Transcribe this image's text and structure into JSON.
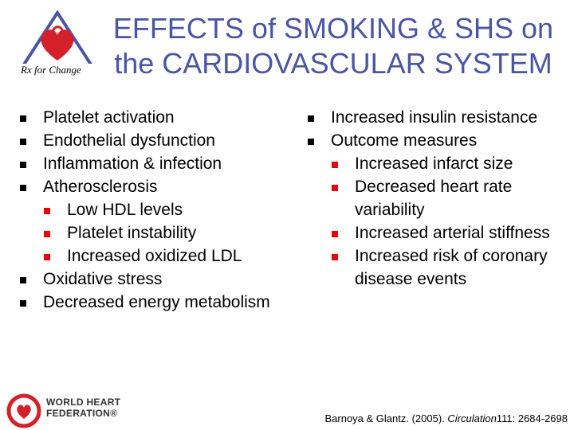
{
  "title": {
    "line1": "EFFECTS of SMOKING & SHS on",
    "line2": "the CARDIOVASCULAR SYSTEM"
  },
  "logo": {
    "icon": "heart-triangle-logo-icon",
    "text": "Rx for Change"
  },
  "left_list": [
    {
      "level": 1,
      "text": "Platelet activation"
    },
    {
      "level": 1,
      "text": "Endothelial dysfunction"
    },
    {
      "level": 1,
      "text": "Inflammation & infection"
    },
    {
      "level": 1,
      "text": "Atherosclerosis"
    },
    {
      "level": 2,
      "text": "Low HDL levels"
    },
    {
      "level": 2,
      "text": "Platelet instability"
    },
    {
      "level": 2,
      "text": "Increased oxidized LDL"
    },
    {
      "level": 1,
      "text": "Oxidative stress"
    },
    {
      "level": 1,
      "text": "Decreased energy metabolism"
    }
  ],
  "right_list": [
    {
      "level": 1,
      "text": "Increased insulin resistance"
    },
    {
      "level": 1,
      "text": "Outcome measures"
    },
    {
      "level": 2,
      "text": "Increased infarct size"
    },
    {
      "level": 2,
      "text": "Decreased heart rate variability"
    },
    {
      "level": 2,
      "text": "Increased arterial stiffness"
    },
    {
      "level": 2,
      "text": "Increased risk of coronary disease events"
    }
  ],
  "footer": {
    "whf_line1": "WORLD HEART",
    "whf_line2": "FEDERATION®",
    "whf_icon": "world-heart-federation-logo-icon",
    "citation_authors": "Barnoya & Glantz. (2005).",
    "citation_journal": "Circulation",
    "citation_ref": "111: 2684-2698"
  },
  "colors": {
    "title": "#4a55a4",
    "sub_bullet": "#e8000c",
    "logo_red": "#d4202a"
  }
}
